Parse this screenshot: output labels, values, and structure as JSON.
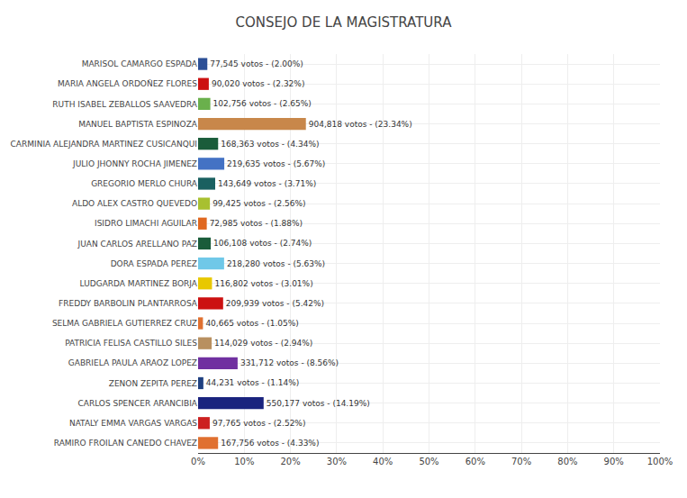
{
  "chart_data": {
    "type": "bar",
    "orientation": "horizontal",
    "title": "CONSEJO DE LA MAGISTRATURA",
    "categories": [
      "MARISOL CAMARGO ESPADA",
      "MARIA ANGELA ORDOÑEZ FLORES",
      "RUTH ISABEL ZEBALLOS SAAVEDRA",
      "MANUEL BAPTISTA ESPINOZA",
      "CARMINIA ALEJANDRA MARTINEZ CUSICANQUI",
      "JULIO JHONNY ROCHA JIMENEZ",
      "GREGORIO MERLO CHURA",
      "ALDO ALEX CASTRO QUEVEDO",
      "ISIDRO LIMACHI AGUILAR",
      "JUAN CARLOS ARELLANO PAZ",
      "DORA ESPADA PEREZ",
      "LUDGARDA MARTINEZ BORJA",
      "FREDDY BARBOLIN PLANTARROSA",
      "SELMA GABRIELA GUTIERREZ CRUZ",
      "PATRICIA FELISA CASTILLO SILES",
      "GABRIELA PAULA ARAOZ LOPEZ",
      "ZENON ZEPITA PEREZ",
      "CARLOS SPENCER ARANCIBIA",
      "NATALY EMMA VARGAS VARGAS",
      "RAMIRO FROILAN CANEDO CHAVEZ"
    ],
    "values": [
      2.0,
      2.32,
      2.65,
      23.34,
      4.34,
      5.67,
      3.71,
      2.56,
      1.88,
      2.74,
      5.63,
      3.01,
      5.42,
      1.05,
      2.94,
      8.56,
      1.14,
      14.19,
      2.52,
      4.33
    ],
    "value_labels": [
      "77,545 votos - (2.00%)",
      "90,020 votos - (2.32%)",
      "102,756 votos - (2.65%)",
      "904,818 votos - (23.34%)",
      "168,363 votos - (4.34%)",
      "219,635 votos - (5.67%)",
      "143,649 votos - (3.71%)",
      "99,425 votos - (2.56%)",
      "72,985 votos - (1.88%)",
      "106,108 votos - (2.74%)",
      "218,280 votos - (5.63%)",
      "116,802 votos - (3.01%)",
      "209,939 votos - (5.42%)",
      "40,665 votos - (1.05%)",
      "114,029 votos - (2.94%)",
      "331,712 votos - (8.56%)",
      "44,231 votos - (1.14%)",
      "550,177 votos - (14.19%)",
      "97,765 votos - (2.52%)",
      "167,756 votos - (4.33%)"
    ],
    "data_labels": true,
    "colors": [
      "#2c4f96",
      "#cc1111",
      "#6ab04c",
      "#c8874a",
      "#1a5c3a",
      "#4472c4",
      "#1a6060",
      "#a8c030",
      "#e06820",
      "#1a5c3a",
      "#70c8e8",
      "#e8c800",
      "#cc1111",
      "#e07030",
      "#b89060",
      "#7030a0",
      "#204080",
      "#1a237e",
      "#cc2020",
      "#e07030"
    ],
    "xlim": [
      0,
      100
    ],
    "xticks": [
      {
        "value": 0,
        "label": "0%"
      },
      {
        "value": 10,
        "label": "10%"
      },
      {
        "value": 20,
        "label": "20%"
      },
      {
        "value": 30,
        "label": "30%"
      },
      {
        "value": 40,
        "label": "40%"
      },
      {
        "value": 50,
        "label": "50%"
      },
      {
        "value": 60,
        "label": "60%"
      },
      {
        "value": 70,
        "label": "70%"
      },
      {
        "value": 80,
        "label": "80%"
      },
      {
        "value": 90,
        "label": "90%"
      },
      {
        "value": 100,
        "label": "100%"
      }
    ],
    "grid": true
  }
}
